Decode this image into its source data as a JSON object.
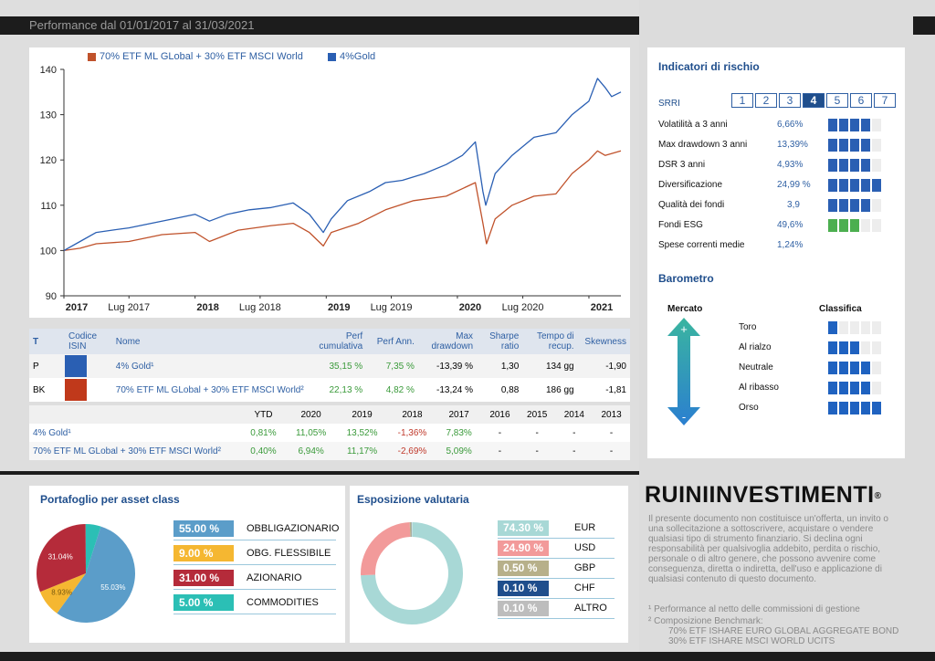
{
  "header": {
    "title": "Performance dal 01/01/2017 al 31/03/2021"
  },
  "colors": {
    "series_bk": "#c0522b",
    "series_p": "#2a5fb3",
    "accent": "#1f4e8c"
  },
  "chart_data": {
    "type": "line",
    "legend": [
      "70% ETF ML GLobal + 30% ETF MSCI World",
      "4%Gold"
    ],
    "ylim": [
      90,
      140
    ],
    "yticks": [
      90,
      100,
      110,
      120,
      130,
      140
    ],
    "xtick_labels": [
      "2017",
      "Lug 2017",
      "2018",
      "Lug 2018",
      "2019",
      "Lug 2019",
      "2020",
      "Lug 2020",
      "2021"
    ],
    "xlim": [
      "2017-01-01",
      "2021-03-31"
    ],
    "series": [
      {
        "name": "4%Gold",
        "color": "#2a5fb3",
        "points": [
          [
            "2017-01-01",
            100
          ],
          [
            "2017-02-15",
            102
          ],
          [
            "2017-04-01",
            104
          ],
          [
            "2017-05-15",
            104.5
          ],
          [
            "2017-07-01",
            105
          ],
          [
            "2017-09-01",
            106
          ],
          [
            "2017-11-01",
            107
          ],
          [
            "2018-01-01",
            108
          ],
          [
            "2018-02-10",
            106.5
          ],
          [
            "2018-04-01",
            108
          ],
          [
            "2018-06-01",
            109
          ],
          [
            "2018-08-01",
            109.5
          ],
          [
            "2018-10-01",
            110.5
          ],
          [
            "2018-11-15",
            108
          ],
          [
            "2018-12-24",
            104
          ],
          [
            "2019-01-15",
            107
          ],
          [
            "2019-03-01",
            111
          ],
          [
            "2019-05-01",
            113
          ],
          [
            "2019-06-15",
            115
          ],
          [
            "2019-08-01",
            115.5
          ],
          [
            "2019-10-01",
            117
          ],
          [
            "2019-12-01",
            119
          ],
          [
            "2020-01-15",
            121
          ],
          [
            "2020-02-20",
            124
          ],
          [
            "2020-03-12",
            113
          ],
          [
            "2020-03-20",
            110
          ],
          [
            "2020-04-15",
            117
          ],
          [
            "2020-06-01",
            121
          ],
          [
            "2020-08-01",
            125
          ],
          [
            "2020-10-01",
            126
          ],
          [
            "2020-11-15",
            130
          ],
          [
            "2021-01-01",
            133
          ],
          [
            "2021-01-25",
            138
          ],
          [
            "2021-02-15",
            136
          ],
          [
            "2021-03-05",
            134
          ],
          [
            "2021-03-31",
            135
          ]
        ]
      },
      {
        "name": "70% ETF ML GLobal + 30% ETF MSCI World",
        "color": "#c0522b",
        "points": [
          [
            "2017-01-01",
            100
          ],
          [
            "2017-02-15",
            100.5
          ],
          [
            "2017-04-01",
            101.5
          ],
          [
            "2017-07-01",
            102
          ],
          [
            "2017-10-01",
            103.5
          ],
          [
            "2018-01-01",
            104
          ],
          [
            "2018-02-10",
            102
          ],
          [
            "2018-05-01",
            104.5
          ],
          [
            "2018-08-01",
            105.5
          ],
          [
            "2018-10-01",
            106
          ],
          [
            "2018-11-15",
            104
          ],
          [
            "2018-12-24",
            101
          ],
          [
            "2019-01-15",
            104
          ],
          [
            "2019-04-01",
            106
          ],
          [
            "2019-06-15",
            109
          ],
          [
            "2019-09-01",
            111
          ],
          [
            "2019-12-01",
            112
          ],
          [
            "2020-02-20",
            115
          ],
          [
            "2020-03-12",
            106
          ],
          [
            "2020-03-22",
            101.5
          ],
          [
            "2020-04-15",
            107
          ],
          [
            "2020-06-01",
            110
          ],
          [
            "2020-08-01",
            112
          ],
          [
            "2020-10-01",
            112.5
          ],
          [
            "2020-11-15",
            117
          ],
          [
            "2021-01-01",
            120
          ],
          [
            "2021-01-25",
            122
          ],
          [
            "2021-02-15",
            121
          ],
          [
            "2021-03-31",
            122
          ]
        ]
      }
    ]
  },
  "perf_table": {
    "headers": [
      "T",
      "Codice ISIN",
      "Nome",
      "Perf cumulativa",
      "Perf Ann.",
      "Max drawdown",
      "Sharpe ratio",
      "Tempo di recup.",
      "Skewness"
    ],
    "rows": [
      {
        "t": "P",
        "color": "#2a5fb3",
        "name": "4% Gold¹",
        "perf_cum": "35,15 %",
        "perf_ann": "7,35 %",
        "max_dd": "-13,39 %",
        "sharpe": "1,30",
        "recup": "134 gg",
        "skew": "-1,90"
      },
      {
        "t": "BK",
        "color": "#c0391b",
        "name": "70% ETF ML GLobal + 30% ETF MSCI World²",
        "perf_cum": "22,13 %",
        "perf_ann": "4,82 %",
        "max_dd": "-13,24 %",
        "sharpe": "0,88",
        "recup": "186 gg",
        "skew": "-1,81"
      }
    ]
  },
  "yearly_table": {
    "headers": [
      "YTD",
      "2020",
      "2019",
      "2018",
      "2017",
      "2016",
      "2015",
      "2014",
      "2013"
    ],
    "rows": [
      {
        "name": "4% Gold¹",
        "values": [
          "0,81%",
          "11,05%",
          "13,52%",
          "-1,36%",
          "7,83%",
          "-",
          "-",
          "-",
          "-"
        ]
      },
      {
        "name": "70% ETF ML GLobal + 30% ETF MSCI World²",
        "values": [
          "0,40%",
          "6,94%",
          "11,17%",
          "-2,69%",
          "5,09%",
          "-",
          "-",
          "-",
          "-"
        ]
      }
    ]
  },
  "risk": {
    "title": "Indicatori di rischio",
    "srri_label": "SRRI",
    "srri_scale": [
      "1",
      "2",
      "3",
      "4",
      "5",
      "6",
      "7"
    ],
    "srri_value": 4,
    "indicators": [
      {
        "label": "Volatilità a 3 anni",
        "value": "6,66%",
        "level": 4,
        "color": "#2a5fb3"
      },
      {
        "label": "Max drawdown 3 anni",
        "value": "13,39%",
        "level": 4,
        "color": "#2a5fb3"
      },
      {
        "label": "DSR 3 anni",
        "value": "4,93%",
        "level": 4,
        "color": "#2a5fb3"
      },
      {
        "label": "Diversificazione",
        "value": "24,99 %",
        "level": 5,
        "color": "#2a5fb3"
      },
      {
        "label": "Qualità dei fondi",
        "value": "3,9",
        "level": 4,
        "color": "#2a5fb3"
      },
      {
        "label": "Fondi ESG",
        "value": "49,6%",
        "level": 3,
        "color": "#4caf50"
      },
      {
        "label": "Spese correnti medie",
        "value": "1,24%",
        "level": 0,
        "color": "#2a5fb3"
      }
    ]
  },
  "barometro": {
    "title": "Barometro",
    "mercato": "Mercato",
    "classifica": "Classifica",
    "plus": "+",
    "minus": "-",
    "levels": [
      {
        "label": "Toro",
        "level": 1
      },
      {
        "label": "Al rialzo",
        "level": 3
      },
      {
        "label": "Neutrale",
        "level": 4
      },
      {
        "label": "Al ribasso",
        "level": 4
      },
      {
        "label": "Orso",
        "level": 5
      }
    ]
  },
  "asset_class": {
    "title": "Portafoglio per asset class",
    "items": [
      {
        "value": "55.00 %",
        "label": "OBBLIGAZIONARIO",
        "color": "#5b9dc9",
        "pct": 55.03,
        "pie_label": "55.03%"
      },
      {
        "value": "9.00 %",
        "label": "OBG. FLESSIBILE",
        "color": "#f5b731",
        "pct": 8.93,
        "pie_label": "8.93%"
      },
      {
        "value": "31.00 %",
        "label": "AZIONARIO",
        "color": "#b52b3a",
        "pct": 31.04,
        "pie_label": "31.04%"
      },
      {
        "value": "5.00 %",
        "label": "COMMODITIES",
        "color": "#2bbfb5",
        "pct": 5.0,
        "pie_label": ""
      }
    ]
  },
  "currency": {
    "title": "Esposizione valutaria",
    "items": [
      {
        "value": "74.30 %",
        "label": "EUR",
        "color": "#a8d8d6",
        "pct": 74.3
      },
      {
        "value": "24.90 %",
        "label": "USD",
        "color": "#f29a9a",
        "pct": 24.9
      },
      {
        "value": "0.50 %",
        "label": "GBP",
        "color": "#b7b08a",
        "pct": 0.5
      },
      {
        "value": "0.10 %",
        "label": "CHF",
        "color": "#1f4e8c",
        "pct": 0.1
      },
      {
        "value": "0.10 %",
        "label": "ALTRO",
        "color": "#bdbdbd",
        "pct": 0.1
      }
    ]
  },
  "brand": {
    "logo": "RUINIINVESTIMENTI",
    "registered": "®"
  },
  "disclaimer": "Il presente documento non costituisce un'offerta, un invito o una sollecitazione a sottoscrivere, acquistare o vendere qualsiasi tipo di strumento finanziario. Si declina ogni responsabilità per qualsivoglia addebito, perdita o rischio, personale o di altro genere, che possono avvenire come conseguenza, diretta o indiretta, dell'uso e applicazione di qualsiasi contenuto di questo documento.",
  "footnotes": {
    "note1": "¹ Performance al netto delle commissioni  di gestione",
    "note2": "² Composizione Benchmark:",
    "bench1": "70% ETF ISHARE EURO GLOBAL AGGREGATE BOND",
    "bench2": "30% ETF ISHARE MSCI WORLD UCITS"
  }
}
